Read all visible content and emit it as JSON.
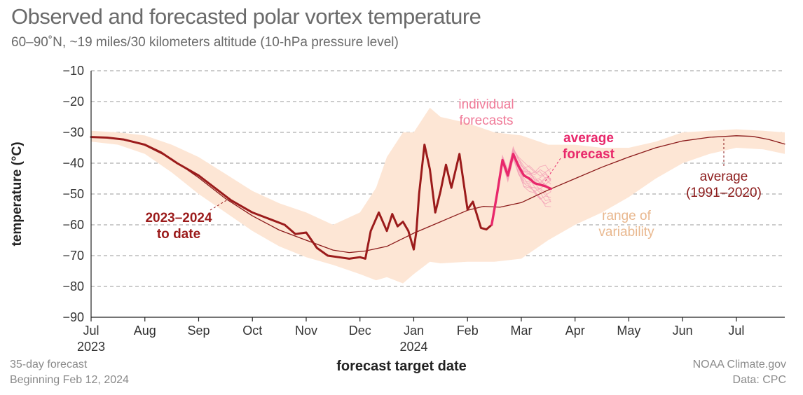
{
  "title": "Observed and forecasted polar vortex temperature",
  "subtitle": "60–90˚N, ~19 miles/30 kilometers altitude (10-hPa pressure level)",
  "footer": {
    "left_line1": "35-day forecast",
    "left_line2": "Beginning Feb 12, 2024",
    "right_line1": "NOAA Climate.gov",
    "right_line2": "Data: CPC"
  },
  "colors": {
    "range": "#fde6d5",
    "observed": "#9b1b1b",
    "average": "#8b1a1a",
    "forecast": "#e8286b",
    "individual": "#f3a0b6",
    "range_label": "#e9b88f"
  },
  "chart_data": {
    "type": "line",
    "title": "Observed and forecasted polar vortex temperature",
    "xlabel": "forecast target date",
    "ylabel": "temperature (°C)",
    "ylim": [
      -90,
      -10
    ],
    "yticks": [
      "−10",
      "−20",
      "−30",
      "−40",
      "−50",
      "−60",
      "−70",
      "−80",
      "−90"
    ],
    "ytick_values": [
      -10,
      -20,
      -30,
      -40,
      -50,
      -60,
      -70,
      -80,
      -90
    ],
    "x_unit": "months since Jul 1, 2023",
    "xlim": [
      0,
      12.9
    ],
    "xticks": [
      "Jul",
      "Aug",
      "Sep",
      "Oct",
      "Nov",
      "Dec",
      "Jan",
      "Feb",
      "Mar",
      "Apr",
      "May",
      "Jun",
      "Jul"
    ],
    "xtick_values": [
      0,
      1,
      2,
      3,
      4,
      5,
      6,
      7,
      8,
      9,
      10,
      11,
      12
    ],
    "year_labels": [
      {
        "label": "2023",
        "x": 0
      },
      {
        "label": "2024",
        "x": 6
      }
    ],
    "annotations": {
      "observed": [
        "2023–2024",
        "to date"
      ],
      "individual": [
        "individual",
        "forecasts"
      ],
      "avg_forecast": [
        "average",
        "forecast"
      ],
      "average": [
        "average",
        "(1991–2020)"
      ],
      "range": [
        "range of",
        "variability"
      ]
    },
    "series": [
      {
        "name": "average (1991–2020)",
        "x": [
          0,
          0.3,
          0.6,
          1.0,
          1.5,
          2.0,
          2.5,
          3.0,
          3.5,
          4.0,
          4.5,
          4.8,
          5.1,
          5.5,
          6.0,
          6.5,
          7.0,
          7.3,
          7.6,
          8.0,
          8.5,
          9.0,
          9.5,
          10.0,
          10.5,
          11.0,
          11.5,
          12.0,
          12.3,
          12.6,
          12.9
        ],
        "values": [
          -31.5,
          -31.6,
          -32.3,
          -34.2,
          -38.6,
          -44.7,
          -51.5,
          -57.1,
          -61.7,
          -65.0,
          -68.2,
          -69.0,
          -68.5,
          -67.0,
          -62.7,
          -59.0,
          -55.3,
          -54.0,
          -54.3,
          -52.8,
          -48.7,
          -45.0,
          -41.3,
          -38.0,
          -35.0,
          -32.8,
          -31.6,
          -31.1,
          -31.3,
          -32.3,
          -33.8
        ]
      },
      {
        "name": "2023–2024 to date",
        "x": [
          0,
          0.3,
          0.6,
          1.0,
          1.3,
          1.6,
          2.0,
          2.3,
          2.6,
          3.0,
          3.3,
          3.6,
          3.8,
          4.0,
          4.2,
          4.4,
          4.6,
          4.8,
          5.0,
          5.1,
          5.2,
          5.35,
          5.5,
          5.6,
          5.7,
          5.8,
          5.9,
          6.0,
          6.05,
          6.1,
          6.2,
          6.3,
          6.4,
          6.5,
          6.6,
          6.7,
          6.85,
          7.0,
          7.1,
          7.25,
          7.35,
          7.45
        ],
        "values": [
          -31.5,
          -31.7,
          -32.3,
          -34.0,
          -36.5,
          -40.0,
          -44.0,
          -48.0,
          -52.0,
          -56.0,
          -58.0,
          -60.0,
          -63.0,
          -62.5,
          -67.5,
          -70.0,
          -70.5,
          -71.0,
          -70.5,
          -71.0,
          -62.0,
          -56.0,
          -62.0,
          -56.5,
          -60.5,
          -59.0,
          -62.0,
          -68.0,
          -62.0,
          -50.0,
          -34.0,
          -42.0,
          -56.0,
          -49.0,
          -40.5,
          -48.0,
          -37.0,
          -55.0,
          -52.5,
          -61.0,
          -61.5,
          -60.0
        ]
      },
      {
        "name": "average forecast",
        "x": [
          7.45,
          7.55,
          7.65,
          7.75,
          7.85,
          7.95,
          8.05,
          8.15,
          8.25,
          8.35,
          8.45,
          8.55
        ],
        "values": [
          -60.0,
          -50.0,
          -39.0,
          -44.0,
          -37.0,
          -41.0,
          -44.0,
          -45.0,
          -46.5,
          -47.0,
          -47.5,
          -48.3
        ]
      },
      {
        "name": "range of variability",
        "x": [
          0,
          0.5,
          1.0,
          1.5,
          2.0,
          2.5,
          3.0,
          3.5,
          4.0,
          4.5,
          5.0,
          5.3,
          5.5,
          5.8,
          6.0,
          6.3,
          6.5,
          7.0,
          7.5,
          8.0,
          8.5,
          9.0,
          9.5,
          10.0,
          10.5,
          11.0,
          11.5,
          12.0,
          12.5,
          12.9
        ],
        "upper": [
          -29.5,
          -30.0,
          -31.0,
          -34.0,
          -38.0,
          -43.5,
          -49.0,
          -53.0,
          -56.0,
          -60.0,
          -56.0,
          -48.0,
          -38.0,
          -30.0,
          -30.0,
          -22.0,
          -25.0,
          -27.0,
          -30.0,
          -31.0,
          -34.0,
          -34.0,
          -35.0,
          -35.0,
          -33.0,
          -30.0,
          -29.5,
          -29.0,
          -29.5,
          -30.0
        ],
        "lower": [
          -33.0,
          -34.0,
          -37.0,
          -43.0,
          -50.0,
          -56.0,
          -62.0,
          -67.0,
          -70.5,
          -73.0,
          -76.0,
          -78.0,
          -77.0,
          -79.0,
          -76.0,
          -72.0,
          -72.5,
          -72.0,
          -72.0,
          -71.0,
          -65.0,
          -60.0,
          -56.0,
          -51.0,
          -45.0,
          -40.0,
          -37.0,
          -35.0,
          -35.5,
          -37.0
        ]
      }
    ]
  }
}
